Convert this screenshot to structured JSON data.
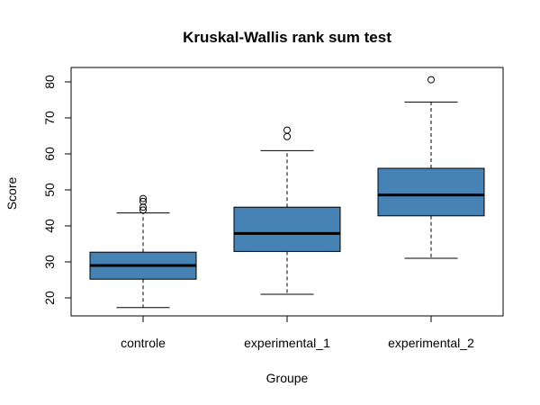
{
  "chart_data": {
    "type": "boxplot",
    "title": "Kruskal-Wallis rank sum test",
    "xlabel": "Groupe",
    "ylabel": "Score",
    "ylim": [
      15,
      84
    ],
    "yticks": [
      20,
      30,
      40,
      50,
      60,
      70,
      80
    ],
    "box_color": "#4682B4",
    "categories": [
      "controle",
      "experimental_1",
      "experimental_2"
    ],
    "boxes": [
      {
        "name": "controle",
        "whisker_low": 17.3,
        "q1": 25.2,
        "median": 29.0,
        "q3": 32.7,
        "whisker_high": 43.6,
        "outliers": [
          44.4,
          45.2,
          46.8,
          47.6
        ]
      },
      {
        "name": "experimental_1",
        "whisker_low": 21.0,
        "q1": 32.9,
        "median": 37.9,
        "q3": 45.2,
        "whisker_high": 60.9,
        "outliers": [
          64.8,
          66.6
        ]
      },
      {
        "name": "experimental_2",
        "whisker_low": 31.0,
        "q1": 42.8,
        "median": 48.6,
        "q3": 56.0,
        "whisker_high": 74.4,
        "outliers": [
          80.6
        ]
      }
    ]
  }
}
